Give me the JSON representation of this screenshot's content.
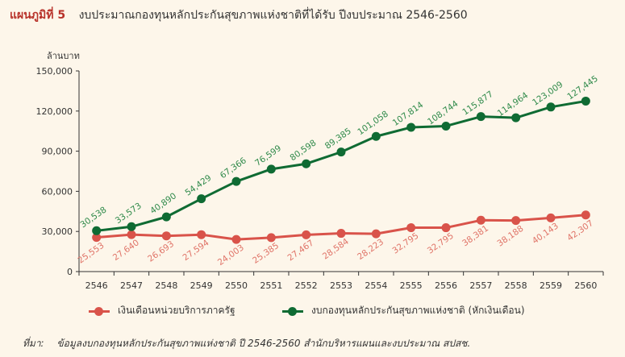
{
  "header": {
    "figure_label": "แผนภูมิที่ 5",
    "title": "งบประมาณกองทุนหลักประกันสุขภาพแห่งชาติที่ได้รับ ปีงบประมาณ 2546-2560"
  },
  "chart_data": {
    "type": "line",
    "title": "งบประมาณกองทุนหลักประกันสุขภาพแห่งชาติที่ได้รับ ปีงบประมาณ 2546-2560",
    "ylabel": "ล้านบาท",
    "xlabel": "",
    "ylim": [
      0,
      150000
    ],
    "yticks": [
      0,
      30000,
      60000,
      90000,
      120000,
      150000
    ],
    "ytick_labels": [
      "0",
      "30,000",
      "60,000",
      "90,000",
      "120,000",
      "150,000"
    ],
    "categories": [
      "2546",
      "2547",
      "2548",
      "2549",
      "2550",
      "2551",
      "2552",
      "2553",
      "2554",
      "2555",
      "2556",
      "2557",
      "2558",
      "2559",
      "2560"
    ],
    "grid": false,
    "legend_position": "bottom",
    "series": [
      {
        "name": "เงินเดือนหน่วยบริการภาครัฐ",
        "color": "#d9534a",
        "label_color": "#e07468",
        "values": [
          25553,
          27640,
          26693,
          27594,
          24003,
          25385,
          27467,
          28584,
          28223,
          32795,
          32795,
          38381,
          38188,
          40143,
          42307
        ],
        "data_labels": [
          "25,553",
          "27,640",
          "26,693",
          "27,594",
          "24,003",
          "25,385",
          "27,467",
          "28,584",
          "28,223",
          "32,795",
          "32,795",
          "38,381",
          "38,188",
          "40,143",
          "42,307"
        ]
      },
      {
        "name": "งบกองทุนหลักประกันสุขภาพแห่งชาติ (หักเงินเดือน)",
        "color": "#0f6b33",
        "label_color": "#2f8a4a",
        "values": [
          30538,
          33573,
          40890,
          54429,
          67366,
          76599,
          80598,
          89385,
          101058,
          107814,
          108744,
          115877,
          114964,
          123009,
          127445
        ],
        "data_labels": [
          "30,538",
          "33,573",
          "40,890",
          "54,429",
          "67,366",
          "76,599",
          "80,598",
          "89,385",
          "101,058",
          "107,814",
          "108,744",
          "115,877",
          "114,964",
          "123,009",
          "127,445"
        ]
      }
    ]
  },
  "footer": {
    "source_label": "ที่มา:",
    "source_text": "ข้อมูลงบกองทุนหลักประกันสุขภาพแห่งชาติ ปี 2546-2560 สำนักบริหารแผนและงบประมาณ สปสช."
  }
}
